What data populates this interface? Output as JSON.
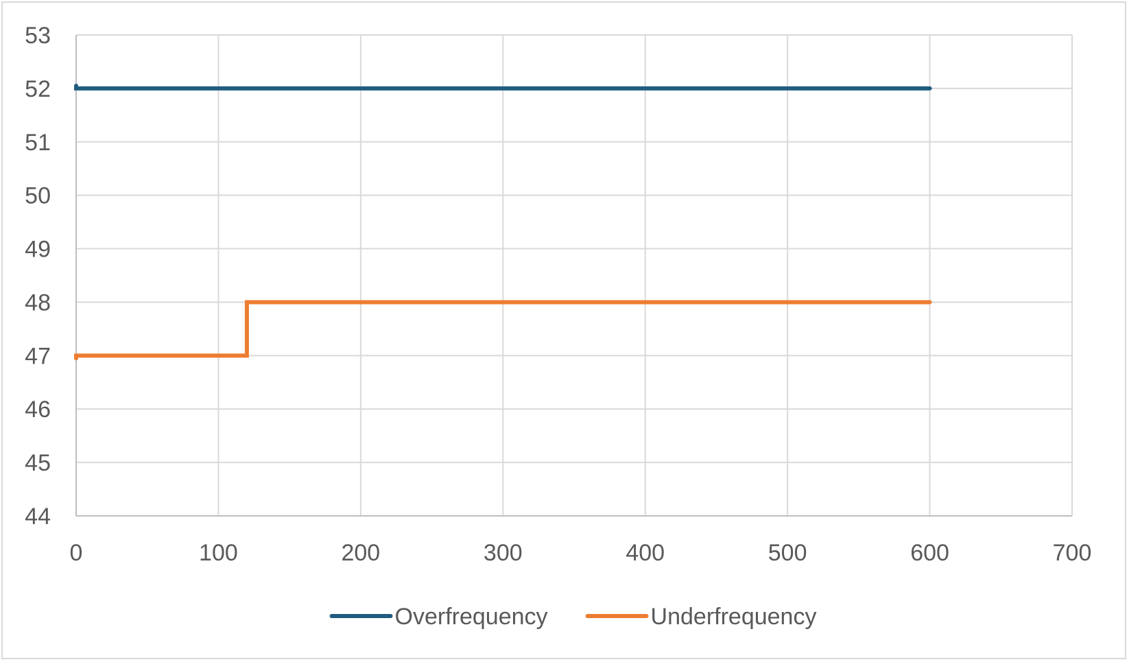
{
  "chart_data": {
    "type": "line",
    "title": "",
    "xlabel": "",
    "ylabel": "",
    "xlim": [
      0,
      700
    ],
    "ylim": [
      44,
      53
    ],
    "x_ticks": [
      0,
      100,
      200,
      300,
      400,
      500,
      600,
      700
    ],
    "y_ticks": [
      44,
      45,
      46,
      47,
      48,
      49,
      50,
      51,
      52,
      53
    ],
    "grid": true,
    "legend_position": "bottom",
    "series": [
      {
        "name": "Overfrequency",
        "color": "#1f5c80",
        "points": [
          [
            0,
            52.05
          ],
          [
            0,
            52
          ],
          [
            600,
            52
          ]
        ]
      },
      {
        "name": "Underfrequency",
        "color": "#ed7d31",
        "points": [
          [
            0,
            46.95
          ],
          [
            0,
            47
          ],
          [
            120,
            47
          ],
          [
            120,
            48
          ],
          [
            600,
            48
          ]
        ]
      }
    ]
  }
}
